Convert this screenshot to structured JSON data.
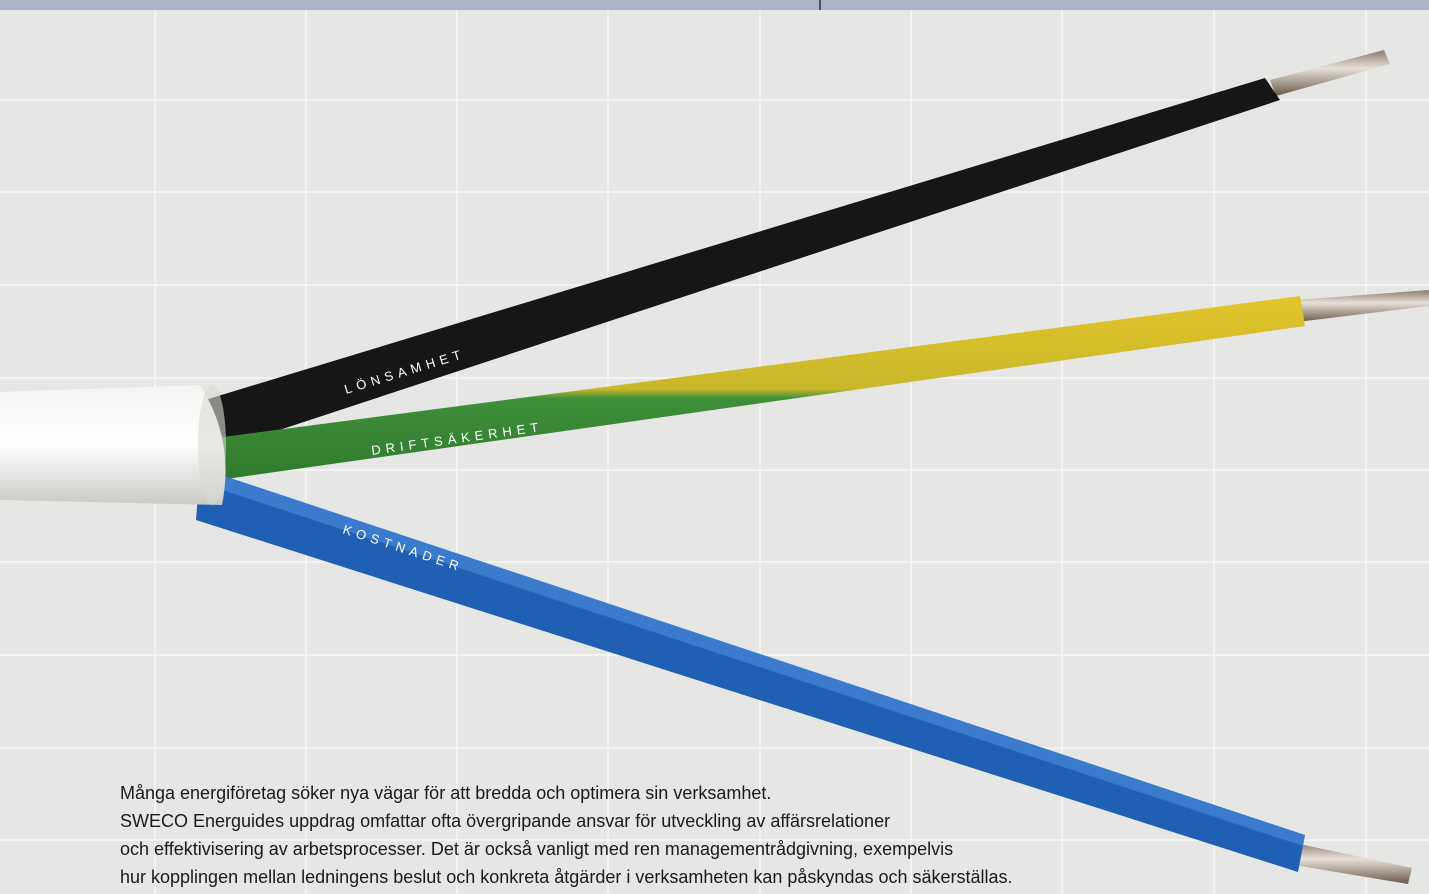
{
  "cable_labels": [
    "LÖNSAMHET",
    "DRIFTSÄKERHET",
    "KOSTNADER"
  ],
  "paragraph": [
    "Många energiföretag söker nya vägar för att bredda och optimera sin verksamhet.",
    "SWECO Energuides uppdrag omfattar ofta övergripande ansvar för utveckling av affärsrelationer",
    "och effektivisering av arbetsprocesser. Det är också vanligt med ren managementrådgivning, exempelvis",
    "hur kopplingen mellan ledningens beslut och konkreta åtgärder i verksamheten kan påskyndas och säkerställas."
  ]
}
